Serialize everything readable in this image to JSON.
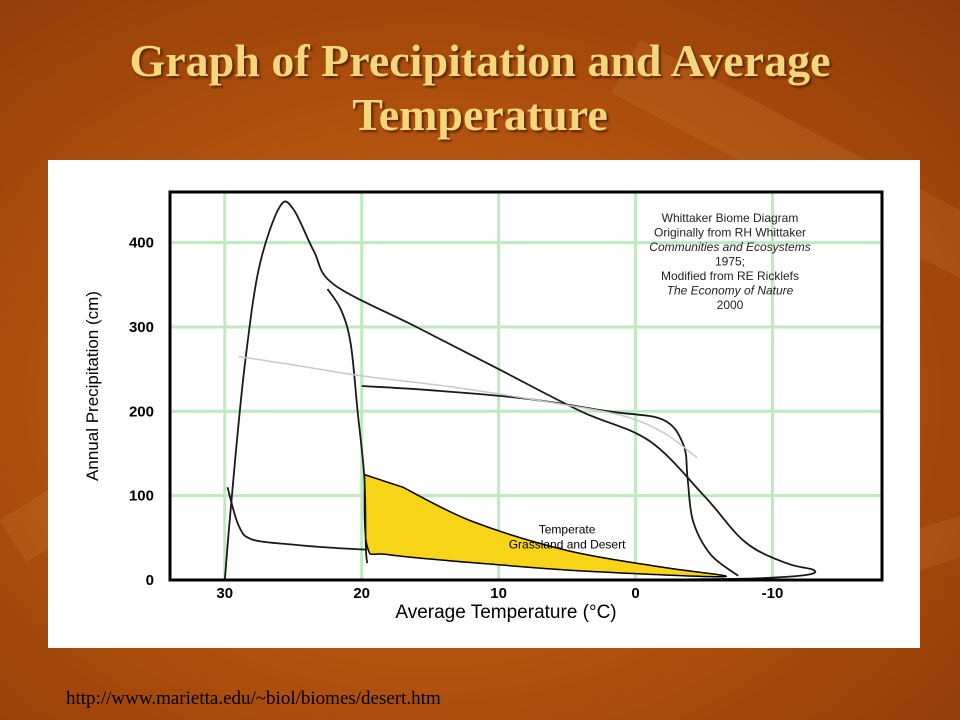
{
  "slide": {
    "title_line1": "Graph of Precipitation and Average",
    "title_line2": "Temperature",
    "source_url": "http://www.marietta.edu/~biol/biomes/desert.htm"
  },
  "colors": {
    "background": "#b3530f",
    "title": "#f4d77a",
    "grid": "#bfeabf",
    "highlight_region": "#f7d418",
    "curve": "#1a1a1a"
  },
  "chart_data": {
    "type": "area",
    "title": "",
    "xlabel": "Average Temperature (°C)",
    "ylabel": "Annual Precipitation (cm)",
    "xlim": [
      34,
      -18
    ],
    "ylim": [
      0,
      460
    ],
    "x_reversed": true,
    "grid": true,
    "x_ticks": [
      30,
      20,
      10,
      0,
      -10
    ],
    "x_tick_labels": [
      "30",
      "20",
      "10",
      "0",
      "-10"
    ],
    "y_ticks": [
      0,
      100,
      200,
      300,
      400
    ],
    "y_tick_labels": [
      "0",
      "100",
      "200",
      "300",
      "400"
    ],
    "annotation_lines": [
      "Whittaker Biome Diagram",
      "Originally from RH Whittaker",
      "Communities and Ecosystems",
      "1975;",
      "Modified from RE Ricklefs",
      "The Economy of Nature",
      "2000"
    ],
    "highlight_region": {
      "label_lines": [
        "Temperate",
        "Grassland and Desert"
      ],
      "points": [
        [
          19.8,
          125
        ],
        [
          19.6,
          40
        ],
        [
          18,
          30
        ],
        [
          10,
          18
        ],
        [
          3,
          10
        ],
        [
          -6.5,
          4
        ],
        [
          -2,
          15
        ],
        [
          5,
          35
        ],
        [
          12,
          70
        ],
        [
          17,
          110
        ]
      ]
    },
    "boundaries": [
      {
        "points": [
          [
            30,
            0
          ],
          [
            29.7,
            60
          ],
          [
            29.2,
            150
          ],
          [
            28.5,
            260
          ],
          [
            27.5,
            370
          ],
          [
            26,
            442
          ],
          [
            25,
            440
          ],
          [
            23.5,
            390
          ],
          [
            22,
            350
          ],
          [
            16,
            300
          ],
          [
            10,
            250
          ],
          [
            4,
            200
          ],
          [
            -1,
            165
          ],
          [
            -5,
            100
          ],
          [
            -8,
            45
          ],
          [
            -11,
            20
          ],
          [
            -13,
            12
          ],
          [
            -12.5,
            6
          ],
          [
            -9,
            2
          ],
          [
            -5,
            1
          ],
          [
            0,
            0
          ],
          [
            5,
            0
          ],
          [
            10,
            0
          ],
          [
            14,
            0
          ]
        ]
      },
      {
        "points": [
          [
            29.8,
            110
          ],
          [
            29,
            65
          ],
          [
            28,
            48
          ],
          [
            25,
            42
          ],
          [
            22,
            38
          ],
          [
            19.6,
            36
          ]
        ]
      },
      {
        "points": [
          [
            22.5,
            345
          ],
          [
            21.5,
            320
          ],
          [
            20.8,
            280
          ],
          [
            20.3,
            200
          ],
          [
            19.8,
            120
          ],
          [
            19.7,
            40
          ],
          [
            19.6,
            20
          ]
        ]
      },
      {
        "points": [
          [
            20,
            230
          ],
          [
            15,
            225
          ],
          [
            8,
            215
          ],
          [
            2,
            200
          ],
          [
            -2,
            190
          ],
          [
            -3.5,
            160
          ],
          [
            -3.8,
            120
          ],
          [
            -4.2,
            70
          ],
          [
            -5.5,
            30
          ],
          [
            -7.5,
            5
          ]
        ]
      },
      {
        "points": [
          [
            29,
            265
          ],
          [
            25,
            255
          ],
          [
            20,
            242
          ],
          [
            13,
            228
          ],
          [
            6,
            210
          ],
          [
            1,
            195
          ],
          [
            -2,
            175
          ],
          [
            -4.5,
            145
          ]
        ],
        "faint": true
      }
    ]
  }
}
